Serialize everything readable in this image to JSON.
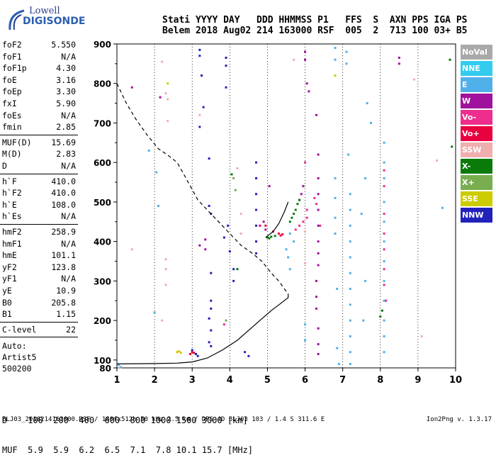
{
  "logo": {
    "line1": "Lowell",
    "line2": "DIGISONDE"
  },
  "header": {
    "line1": "Stati YYYY DAY   DDD HHMMSS P1   FFS  S  AXN PPS IGA PS",
    "line2": "Belem 2018 Aug02 214 163000 RSF  005  2  713 100 03+ B5"
  },
  "params": {
    "group1": [
      {
        "label": "foF2",
        "value": "5.550"
      },
      {
        "label": "foF1",
        "value": "N/A"
      },
      {
        "label": "foF1p",
        "value": "4.30"
      },
      {
        "label": "foE",
        "value": "3.16"
      },
      {
        "label": "foEp",
        "value": "3.30"
      },
      {
        "label": "fxI",
        "value": "5.90"
      },
      {
        "label": "foEs",
        "value": "N/A"
      },
      {
        "label": "fmin",
        "value": "2.85"
      }
    ],
    "group2": [
      {
        "label": "MUF(D)",
        "value": "15.69"
      },
      {
        "label": "M(D)",
        "value": "2.83"
      },
      {
        "label": "D",
        "value": "N/A"
      }
    ],
    "group3": [
      {
        "label": "h`F",
        "value": "410.0"
      },
      {
        "label": "h`F2",
        "value": "410.0"
      },
      {
        "label": "h`E",
        "value": "108.0"
      },
      {
        "label": "h`Es",
        "value": "N/A"
      }
    ],
    "group4": [
      {
        "label": "hmF2",
        "value": "258.9"
      },
      {
        "label": "hmF1",
        "value": "N/A"
      },
      {
        "label": "hmE",
        "value": "101.1"
      },
      {
        "label": "yF2",
        "value": "123.8"
      },
      {
        "label": "yF1",
        "value": "N/A"
      },
      {
        "label": "yE",
        "value": "10.9"
      },
      {
        "label": "B0",
        "value": "205.8"
      },
      {
        "label": "B1",
        "value": "1.15"
      }
    ],
    "group5": [
      {
        "label": "C-level",
        "value": "22"
      }
    ]
  },
  "auto": {
    "line1": "Auto:",
    "line2": "Artist5",
    "line3": "500200"
  },
  "legend": [
    {
      "label": "NoVal",
      "color": "#a9a9a9"
    },
    {
      "label": "NNE",
      "color": "#33ccee"
    },
    {
      "label": "E",
      "color": "#4fb0ea"
    },
    {
      "label": "W",
      "color": "#a0119d"
    },
    {
      "label": "Vo-",
      "color": "#ee2d8e"
    },
    {
      "label": "Vo+",
      "color": "#e8003f"
    },
    {
      "label": "SSW",
      "color": "#f0aeae"
    },
    {
      "label": "X-",
      "color": "#0a7a0a"
    },
    {
      "label": "X+",
      "color": "#78ae50"
    },
    {
      "label": "SSE",
      "color": "#cccc00"
    },
    {
      "label": "NNW",
      "color": "#2222bb"
    }
  ],
  "muf_table": {
    "line1": "D    100  200  400  600  800 1000 1500 3000 [km]",
    "line2": "MUF  5.9  5.9  6.2  6.5  7.1  7.8 10.1 15.7 [MHz]"
  },
  "footer": {
    "left": "BLJ03_2018214163000.RSF / 180fx512h 50 kHz 2.5 km / DPS-4D BLJ03 103 / 1.4 S 311.6 E",
    "right": "Ion2Png v. 1.3.17"
  },
  "chart_data": {
    "type": "scatter",
    "title": "",
    "xlabel": "",
    "ylabel": "",
    "xlim": [
      1,
      10
    ],
    "ylim": [
      80,
      900
    ],
    "x_ticks": [
      1,
      2,
      3,
      4,
      5,
      6,
      7,
      8,
      9,
      10
    ],
    "y_ticks": [
      100,
      200,
      300,
      400,
      500,
      600,
      700,
      800,
      900
    ],
    "grid": "vertical dashed at integer frequencies",
    "legend_placement": "right",
    "series": [
      {
        "name": "NNW",
        "color": "#2222bb",
        "points": [
          [
            3.2,
            885
          ],
          [
            3.2,
            870
          ],
          [
            3.25,
            820
          ],
          [
            3.3,
            740
          ],
          [
            3.45,
            610
          ],
          [
            3.45,
            490
          ],
          [
            3.5,
            470
          ],
          [
            3.5,
            320
          ],
          [
            3.5,
            250
          ],
          [
            3.5,
            230
          ],
          [
            3.45,
            205
          ],
          [
            3.5,
            175
          ],
          [
            3.45,
            145
          ],
          [
            3.5,
            135
          ],
          [
            3.1,
            115
          ],
          [
            3.15,
            110
          ],
          [
            3.9,
            865
          ],
          [
            3.9,
            845
          ],
          [
            3.9,
            790
          ],
          [
            3.95,
            440
          ],
          [
            3.85,
            410
          ],
          [
            4.1,
            330
          ],
          [
            4.1,
            300
          ],
          [
            4.0,
            375
          ],
          [
            4.7,
            600
          ],
          [
            4.7,
            560
          ],
          [
            4.7,
            520
          ],
          [
            4.7,
            480
          ],
          [
            4.7,
            440
          ],
          [
            4.7,
            400
          ],
          [
            4.7,
            370
          ],
          [
            4.4,
            120
          ],
          [
            4.5,
            110
          ],
          [
            3.2,
            690
          ],
          [
            3.0,
            125
          ]
        ]
      },
      {
        "name": "E",
        "color": "#4fb0ea",
        "points": [
          [
            6.8,
            890
          ],
          [
            6.8,
            860
          ],
          [
            6.8,
            560
          ],
          [
            6.8,
            510
          ],
          [
            6.8,
            460
          ],
          [
            6.8,
            420
          ],
          [
            6.85,
            280
          ],
          [
            6.85,
            130
          ],
          [
            6.9,
            90
          ],
          [
            7.1,
            880
          ],
          [
            7.1,
            850
          ],
          [
            7.15,
            620
          ],
          [
            7.2,
            520
          ],
          [
            7.2,
            480
          ],
          [
            7.2,
            440
          ],
          [
            7.2,
            400
          ],
          [
            7.2,
            360
          ],
          [
            7.2,
            320
          ],
          [
            7.2,
            280
          ],
          [
            7.2,
            240
          ],
          [
            7.2,
            200
          ],
          [
            7.2,
            160
          ],
          [
            7.2,
            120
          ],
          [
            7.2,
            90
          ],
          [
            8.1,
            650
          ],
          [
            8.1,
            600
          ],
          [
            8.1,
            560
          ],
          [
            8.1,
            500
          ],
          [
            8.1,
            450
          ],
          [
            8.1,
            400
          ],
          [
            8.1,
            350
          ],
          [
            8.1,
            300
          ],
          [
            8.1,
            250
          ],
          [
            8.1,
            200
          ],
          [
            8.1,
            160
          ],
          [
            8.1,
            120
          ],
          [
            5.55,
            360
          ],
          [
            5.5,
            380
          ],
          [
            5.6,
            330
          ],
          [
            5.7,
            400
          ],
          [
            5.6,
            420
          ],
          [
            6.0,
            190
          ],
          [
            6.0,
            150
          ],
          [
            2.05,
            575
          ],
          [
            2.0,
            220
          ],
          [
            2.1,
            490
          ],
          [
            1.85,
            630
          ],
          [
            9.65,
            485
          ],
          [
            7.65,
            750
          ],
          [
            7.75,
            700
          ],
          [
            7.6,
            560
          ],
          [
            7.5,
            470
          ],
          [
            7.6,
            300
          ],
          [
            7.55,
            200
          ],
          [
            1.05,
            88
          ],
          [
            1.1,
            82
          ]
        ]
      },
      {
        "name": "W",
        "color": "#a0119d",
        "points": [
          [
            6.0,
            880
          ],
          [
            6.0,
            860
          ],
          [
            6.05,
            800
          ],
          [
            6.1,
            780
          ],
          [
            6.3,
            720
          ],
          [
            6.35,
            620
          ],
          [
            6.35,
            560
          ],
          [
            6.35,
            520
          ],
          [
            6.35,
            480
          ],
          [
            6.35,
            440
          ],
          [
            6.35,
            400
          ],
          [
            6.35,
            370
          ],
          [
            6.35,
            340
          ],
          [
            6.3,
            300
          ],
          [
            6.3,
            260
          ],
          [
            6.3,
            230
          ],
          [
            6.35,
            180
          ],
          [
            6.35,
            140
          ],
          [
            6.35,
            115
          ],
          [
            8.5,
            865
          ],
          [
            8.5,
            850
          ],
          [
            5.95,
            540
          ],
          [
            5.9,
            520
          ],
          [
            5.85,
            505
          ],
          [
            4.95,
            430
          ],
          [
            4.9,
            450
          ],
          [
            5.05,
            540
          ],
          [
            1.4,
            790
          ],
          [
            2.15,
            765
          ],
          [
            3.35,
            405
          ],
          [
            3.2,
            390
          ],
          [
            3.35,
            380
          ]
        ]
      },
      {
        "name": "Vo-",
        "color": "#ee2d8e",
        "points": [
          [
            6.05,
            460
          ],
          [
            5.95,
            450
          ],
          [
            5.85,
            440
          ],
          [
            5.75,
            430
          ],
          [
            6.3,
            495
          ],
          [
            6.25,
            510
          ],
          [
            6.4,
            440
          ],
          [
            6.0,
            600
          ],
          [
            6.05,
            480
          ],
          [
            3.85,
            190
          ],
          [
            8.1,
            580
          ],
          [
            8.1,
            540
          ],
          [
            8.1,
            470
          ],
          [
            8.1,
            420
          ],
          [
            8.1,
            380
          ],
          [
            8.1,
            330
          ],
          [
            8.1,
            290
          ],
          [
            8.15,
            250
          ]
        ]
      },
      {
        "name": "Vo+",
        "color": "#e8003f",
        "points": [
          [
            5.3,
            420
          ],
          [
            5.35,
            415
          ],
          [
            5.4,
            418
          ],
          [
            5.15,
            425
          ],
          [
            4.95,
            440
          ],
          [
            3.0,
            120
          ],
          [
            3.05,
            118
          ],
          [
            2.95,
            115
          ],
          [
            4.8,
            440
          ]
        ]
      },
      {
        "name": "SSW",
        "color": "#f0aeae",
        "points": [
          [
            2.3,
            775
          ],
          [
            2.35,
            760
          ],
          [
            2.35,
            705
          ],
          [
            2.2,
            855
          ],
          [
            2.3,
            355
          ],
          [
            2.3,
            330
          ],
          [
            2.3,
            290
          ],
          [
            1.4,
            380
          ],
          [
            1.05,
            80
          ],
          [
            5.7,
            860
          ],
          [
            6.0,
            345
          ],
          [
            6.0,
            425
          ],
          [
            8.9,
            810
          ],
          [
            9.1,
            160
          ],
          [
            9.5,
            605
          ],
          [
            3.2,
            720
          ],
          [
            4.2,
            585
          ],
          [
            4.3,
            470
          ],
          [
            4.3,
            420
          ],
          [
            2.2,
            200
          ]
        ]
      },
      {
        "name": "X-",
        "color": "#0a7a0a",
        "points": [
          [
            5.0,
            410
          ],
          [
            5.1,
            412
          ],
          [
            5.2,
            414
          ],
          [
            5.05,
            408
          ],
          [
            5.6,
            450
          ],
          [
            5.65,
            460
          ],
          [
            5.7,
            470
          ],
          [
            5.75,
            480
          ],
          [
            5.8,
            495
          ],
          [
            5.85,
            505
          ],
          [
            4.05,
            570
          ],
          [
            4.2,
            330
          ],
          [
            8.0,
            210
          ],
          [
            8.05,
            225
          ],
          [
            9.85,
            860
          ],
          [
            9.9,
            640
          ]
        ]
      },
      {
        "name": "X+",
        "color": "#78ae50",
        "points": [
          [
            3.9,
            200
          ],
          [
            4.1,
            560
          ],
          [
            4.15,
            530
          ]
        ]
      },
      {
        "name": "SSE",
        "color": "#cccc00",
        "points": [
          [
            2.6,
            120
          ],
          [
            2.65,
            122
          ],
          [
            2.7,
            118
          ],
          [
            2.35,
            800
          ],
          [
            6.8,
            820
          ]
        ]
      },
      {
        "name": "NoVal",
        "color": "#a9a9a9",
        "points": []
      }
    ],
    "traces": [
      {
        "style": "dashed",
        "points": [
          [
            1.0,
            800
          ],
          [
            1.25,
            750
          ],
          [
            1.5,
            710
          ],
          [
            1.8,
            670
          ],
          [
            2.1,
            635
          ],
          [
            2.4,
            615
          ],
          [
            2.6,
            600
          ],
          [
            2.75,
            575
          ],
          [
            2.95,
            540
          ],
          [
            3.15,
            505
          ],
          [
            3.4,
            480
          ],
          [
            3.7,
            450
          ],
          [
            4.0,
            420
          ],
          [
            4.3,
            390
          ],
          [
            4.6,
            370
          ],
          [
            4.85,
            350
          ],
          [
            5.1,
            320
          ],
          [
            5.3,
            300
          ],
          [
            5.45,
            280
          ],
          [
            5.55,
            268
          ]
        ]
      },
      {
        "style": "solid",
        "points": [
          [
            1.0,
            90
          ],
          [
            2.0,
            91
          ],
          [
            2.6,
            92
          ],
          [
            3.0,
            95
          ],
          [
            3.4,
            105
          ],
          [
            3.8,
            125
          ],
          [
            4.2,
            150
          ],
          [
            4.5,
            175
          ],
          [
            4.8,
            200
          ],
          [
            5.1,
            225
          ],
          [
            5.35,
            243
          ],
          [
            5.55,
            258
          ],
          [
            5.55,
            268
          ]
        ]
      },
      {
        "style": "solid",
        "points": [
          [
            4.95,
            410
          ],
          [
            5.15,
            425
          ],
          [
            5.3,
            445
          ],
          [
            5.45,
            475
          ],
          [
            5.55,
            500
          ]
        ]
      }
    ]
  }
}
